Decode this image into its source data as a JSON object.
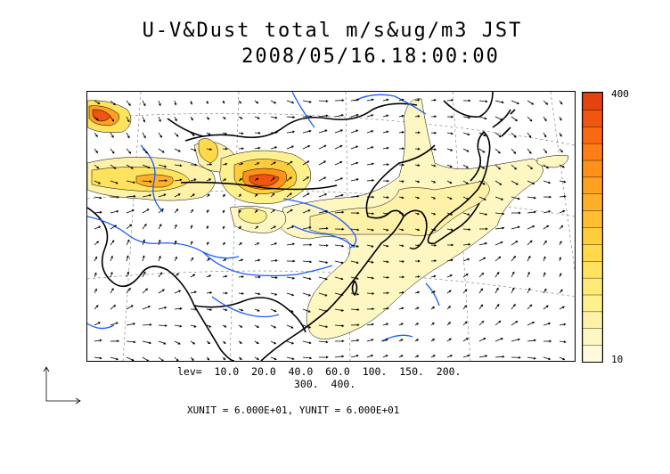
{
  "title": "U-V&Dust total m/s&ug/m3 JST",
  "timestamp": "2008/05/16.18:00:00",
  "colorbar": {
    "max_label": "400",
    "min_label": "10",
    "colors": [
      "#fffadd",
      "#fff7c2",
      "#fff2a8",
      "#fff08e",
      "#ffea77",
      "#ffe25e",
      "#ffd94a",
      "#ffcd3c",
      "#ffbf30",
      "#ffb028",
      "#ffa020",
      "#ff901a",
      "#ff7e15",
      "#f86a12",
      "#ee5510",
      "#e3430e"
    ]
  },
  "levels_line1": "lev=  10.0  20.0  40.0  60.0  100.  150.  200.",
  "levels_line2": "300.  400.",
  "units_line": "XUNIT = 6.000E+01, YUNIT = 6.000E+01",
  "colors": {
    "coast": "#000000",
    "river": "#1a5fff",
    "grid": "#666666",
    "dust_low": "#fff7c2",
    "dust_high": "#e3430e"
  }
}
